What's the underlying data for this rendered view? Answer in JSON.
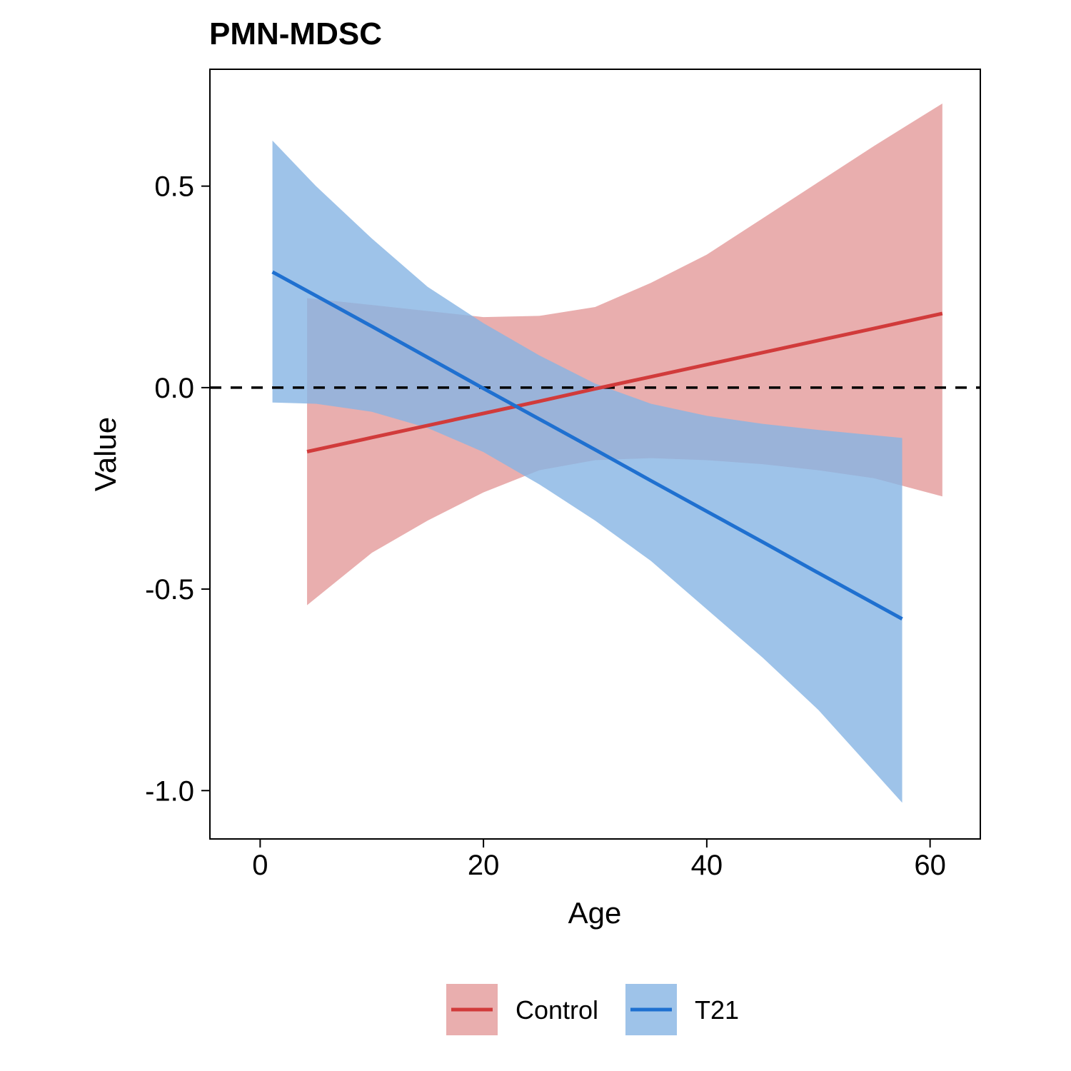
{
  "chart_data": {
    "type": "line",
    "title": "PMN-MDSC",
    "xlabel": "Age",
    "ylabel": "Value",
    "xlim": [
      -4.5,
      64.5
    ],
    "ylim": [
      -1.12,
      0.79
    ],
    "x_ticks": [
      0,
      20,
      40,
      60
    ],
    "x_tick_labels": [
      "0",
      "20",
      "40",
      "60"
    ],
    "y_ticks": [
      -1.0,
      -0.5,
      0.0,
      0.5
    ],
    "y_tick_labels": [
      "-1.0",
      "-0.5",
      "0.0",
      "0.5"
    ],
    "reference_line": {
      "y": 0,
      "style": "dashed",
      "color": "#000000"
    },
    "grid": false,
    "legend_position": "bottom",
    "series": [
      {
        "name": "Control",
        "color": "#D13B3B",
        "ribbon_color": "#E39A9A",
        "x": [
          4.2,
          10,
          15,
          20,
          25,
          30,
          35,
          40,
          45,
          50,
          55,
          61.1
        ],
        "y": [
          -0.159,
          -0.124,
          -0.094,
          -0.064,
          -0.034,
          -0.003,
          0.027,
          0.057,
          0.087,
          0.117,
          0.147,
          0.184
        ],
        "lower": [
          -0.54,
          -0.41,
          -0.33,
          -0.26,
          -0.205,
          -0.18,
          -0.175,
          -0.18,
          -0.19,
          -0.205,
          -0.225,
          -0.27
        ],
        "upper": [
          0.222,
          0.205,
          0.19,
          0.175,
          0.178,
          0.2,
          0.26,
          0.33,
          0.42,
          0.51,
          0.6,
          0.705
        ]
      },
      {
        "name": "T21",
        "color": "#1F70D0",
        "ribbon_color": "#86B4E4",
        "x": [
          1.1,
          5,
          10,
          15,
          20,
          25,
          30,
          35,
          40,
          45,
          50,
          57.5
        ],
        "y": [
          0.287,
          0.228,
          0.152,
          0.075,
          -0.002,
          -0.078,
          -0.154,
          -0.231,
          -0.307,
          -0.383,
          -0.46,
          -0.574
        ],
        "lower": [
          -0.037,
          -0.04,
          -0.06,
          -0.1,
          -0.16,
          -0.24,
          -0.33,
          -0.43,
          -0.55,
          -0.67,
          -0.8,
          -1.03
        ],
        "upper": [
          0.613,
          0.5,
          0.37,
          0.25,
          0.16,
          0.08,
          0.01,
          -0.04,
          -0.07,
          -0.09,
          -0.105,
          -0.125
        ]
      }
    ]
  }
}
